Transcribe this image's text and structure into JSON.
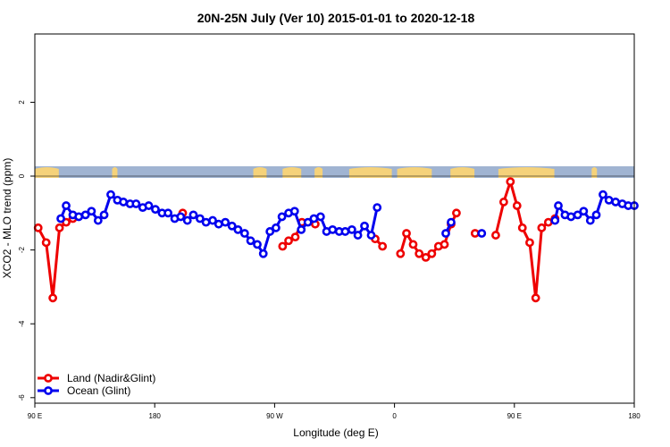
{
  "chart_data": {
    "type": "line",
    "title": "20N-25N July (Ver 10)   2015-01-01 to 2020-12-18",
    "xlabel": "Longitude (deg E)",
    "ylabel": "XCO2 - MLO trend (ppm)",
    "xlim": [
      90,
      540
    ],
    "ylim": [
      -6.15,
      3.85
    ],
    "x_ticks": [
      {
        "value": 90,
        "label": "90 E"
      },
      {
        "value": 180,
        "label": "180"
      },
      {
        "value": 270,
        "label": "90 W"
      },
      {
        "value": 360,
        "label": "0"
      },
      {
        "value": 450,
        "label": "90 E"
      },
      {
        "value": 540,
        "label": "180"
      }
    ],
    "y_ticks": [
      {
        "value": -6,
        "label": "-6"
      },
      {
        "value": -4,
        "label": "-4"
      },
      {
        "value": -2,
        "label": "-2"
      },
      {
        "value": 0,
        "label": "0"
      },
      {
        "value": 2,
        "label": "2"
      }
    ],
    "colors": {
      "land": "#ee0000",
      "ocean": "#0000ee",
      "map_ocean": "#a0b4d2",
      "map_land": "#f5d27a"
    },
    "legend": {
      "position": "bottom-left",
      "entries": [
        {
          "label": "Land (Nadir&Glint)",
          "series": "land"
        },
        {
          "label": "Ocean (Glint)",
          "series": "ocean"
        }
      ]
    },
    "series": [
      {
        "name": "Land (Nadir&Glint)",
        "key": "land",
        "segments": [
          [
            [
              92.5,
              -1.4
            ],
            [
              98.5,
              -1.8
            ],
            [
              103.5,
              -3.3
            ],
            [
              108.5,
              -1.4
            ],
            [
              113.5,
              -1.25
            ],
            [
              118.5,
              -1.15
            ]
          ],
          [
            [
              201,
              -1.0
            ]
          ],
          [
            [
              276,
              -1.9
            ],
            [
              280.5,
              -1.75
            ],
            [
              285.5,
              -1.65
            ],
            [
              290.5,
              -1.25
            ],
            [
              300.5,
              -1.3
            ]
          ],
          [
            [
              345.5,
              -1.7
            ],
            [
              351,
              -1.9
            ]
          ],
          [
            [
              364.5,
              -2.1
            ],
            [
              369,
              -1.55
            ],
            [
              374,
              -1.85
            ],
            [
              378.5,
              -2.1
            ],
            [
              383.5,
              -2.2
            ],
            [
              388,
              -2.1
            ],
            [
              393,
              -1.9
            ],
            [
              397.5,
              -1.85
            ],
            [
              402.5,
              -1.3
            ],
            [
              406.5,
              -1.0
            ]
          ],
          [
            [
              420.5,
              -1.55
            ]
          ],
          [
            [
              436,
              -1.6
            ],
            [
              442,
              -0.7
            ],
            [
              447,
              -0.15
            ],
            [
              452,
              -0.8
            ],
            [
              456,
              -1.4
            ],
            [
              461.5,
              -1.8
            ],
            [
              466,
              -3.3
            ],
            [
              470.5,
              -1.4
            ],
            [
              475.5,
              -1.25
            ],
            [
              480.5,
              -1.15
            ]
          ]
        ]
      },
      {
        "name": "Ocean (Glint)",
        "key": "ocean",
        "segments": [
          [
            [
              109.5,
              -1.15
            ],
            [
              113.5,
              -0.8
            ],
            [
              118.5,
              -1.05
            ],
            [
              123,
              -1.1
            ],
            [
              128,
              -1.05
            ],
            [
              132.5,
              -0.95
            ],
            [
              137.5,
              -1.2
            ],
            [
              142,
              -1.05
            ],
            [
              147,
              -0.5
            ],
            [
              152,
              -0.65
            ],
            [
              156.5,
              -0.7
            ],
            [
              161.5,
              -0.75
            ],
            [
              166,
              -0.75
            ],
            [
              171,
              -0.85
            ],
            [
              175.5,
              -0.8
            ],
            [
              180.5,
              -0.9
            ],
            [
              185.5,
              -1.0
            ],
            [
              190,
              -1.0
            ],
            [
              195,
              -1.15
            ],
            [
              199.5,
              -1.1
            ],
            [
              204.5,
              -1.2
            ],
            [
              209,
              -1.05
            ],
            [
              214,
              -1.15
            ],
            [
              218.5,
              -1.25
            ],
            [
              223.5,
              -1.2
            ],
            [
              228,
              -1.3
            ],
            [
              233,
              -1.25
            ],
            [
              238,
              -1.35
            ],
            [
              242.5,
              -1.45
            ],
            [
              247.5,
              -1.55
            ],
            [
              252,
              -1.75
            ],
            [
              257,
              -1.85
            ],
            [
              261.5,
              -2.1
            ],
            [
              266.5,
              -1.5
            ],
            [
              271,
              -1.4
            ],
            [
              275.5,
              -1.1
            ],
            [
              280.5,
              -1.0
            ],
            [
              285,
              -0.95
            ],
            [
              290,
              -1.45
            ],
            [
              295,
              -1.25
            ],
            [
              299.5,
              -1.15
            ],
            [
              304.5,
              -1.1
            ],
            [
              309,
              -1.5
            ],
            [
              313.5,
              -1.45
            ],
            [
              318.5,
              -1.5
            ],
            [
              323,
              -1.5
            ],
            [
              328,
              -1.45
            ],
            [
              332.5,
              -1.6
            ],
            [
              337.5,
              -1.35
            ],
            [
              342.5,
              -1.6
            ],
            [
              347,
              -0.85
            ]
          ],
          [
            [
              398.5,
              -1.55
            ],
            [
              402.5,
              -1.25
            ]
          ],
          [
            [
              425.5,
              -1.55
            ]
          ],
          [
            [
              480.5,
              -1.2
            ],
            [
              483,
              -0.8
            ],
            [
              488,
              -1.05
            ],
            [
              492.5,
              -1.1
            ],
            [
              497.5,
              -1.05
            ],
            [
              502,
              -0.95
            ],
            [
              507,
              -1.2
            ],
            [
              511.5,
              -1.05
            ],
            [
              516.5,
              -0.5
            ],
            [
              521,
              -0.65
            ],
            [
              526,
              -0.7
            ],
            [
              531,
              -0.75
            ],
            [
              535.5,
              -0.8
            ],
            [
              540,
              -0.8
            ]
          ]
        ]
      }
    ]
  }
}
